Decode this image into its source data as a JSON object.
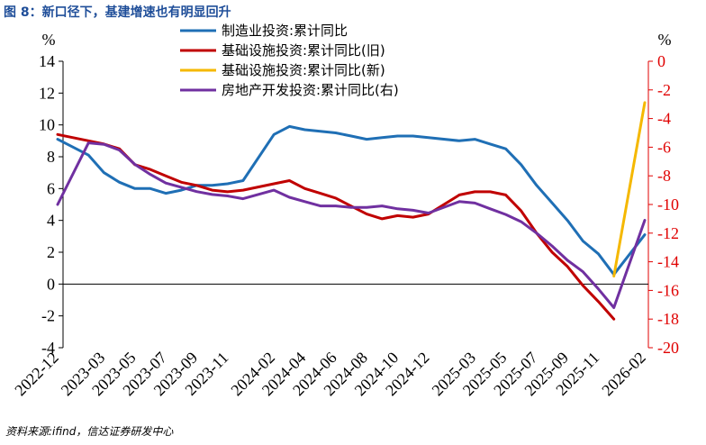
{
  "header": {
    "title": "图 8：新口径下，基建增速也有明显回升"
  },
  "footer": {
    "source": "资料来源:ifind，信达证券研发中心"
  },
  "colors": {
    "manufacturing": "#1f6fb5",
    "infra_old": "#c00000",
    "infra_new": "#f5b800",
    "realestate": "#7030a0",
    "right_axis": "#e00000",
    "title": "#1f4e99"
  },
  "chart_data": {
    "type": "line",
    "title": "新口径下，基建增速也有明显回升",
    "y_left": {
      "unit": "%",
      "min": -4,
      "max": 14,
      "ticks": [
        -4,
        -2,
        0,
        2,
        4,
        6,
        8,
        10,
        12,
        14
      ]
    },
    "y_right": {
      "unit": "%",
      "min": -20,
      "max": 0,
      "ticks": [
        -20,
        -18,
        -16,
        -14,
        -12,
        -10,
        -8,
        -6,
        -4,
        -2,
        0
      ]
    },
    "x_ticks": [
      "2022-12",
      "2023-03",
      "2023-05",
      "2023-07",
      "2023-09",
      "2023-11",
      "2024-02",
      "2024-04",
      "2024-06",
      "2024-08",
      "2024-10",
      "2024-12",
      "2025-03",
      "2025-05",
      "2025-07",
      "2025-09",
      "2025-11",
      "2026-02"
    ],
    "series": [
      {
        "name": "制造业投资:累计同比",
        "axis": "left",
        "color_key": "manufacturing",
        "x": [
          "2022-12",
          "2023-02",
          "2023-03",
          "2023-04",
          "2023-05",
          "2023-06",
          "2023-07",
          "2023-08",
          "2023-09",
          "2023-10",
          "2023-11",
          "2023-12",
          "2024-02",
          "2024-03",
          "2024-04",
          "2024-05",
          "2024-06",
          "2024-07",
          "2024-08",
          "2024-09",
          "2024-10",
          "2024-11",
          "2024-12",
          "2025-02",
          "2025-03",
          "2025-04",
          "2025-05",
          "2025-06",
          "2025-07",
          "2025-08",
          "2025-09",
          "2025-10",
          "2025-11",
          "2025-12",
          "2026-02"
        ],
        "y": [
          9.1,
          8.1,
          7.0,
          6.4,
          6.0,
          6.0,
          5.7,
          5.9,
          6.2,
          6.2,
          6.3,
          6.5,
          9.4,
          9.9,
          9.7,
          9.6,
          9.5,
          9.3,
          9.1,
          9.2,
          9.3,
          9.3,
          9.2,
          9.0,
          9.1,
          8.8,
          8.5,
          7.5,
          6.2,
          5.1,
          4.0,
          2.7,
          1.9,
          0.6,
          3.1
        ]
      },
      {
        "name": "基础设施投资:累计同比(旧)",
        "axis": "left",
        "color_key": "infra_old",
        "x": [
          "2022-12",
          "2023-02",
          "2023-03",
          "2023-04",
          "2023-05",
          "2023-06",
          "2023-07",
          "2023-08",
          "2023-09",
          "2023-10",
          "2023-11",
          "2023-12",
          "2024-02",
          "2024-03",
          "2024-04",
          "2024-05",
          "2024-06",
          "2024-07",
          "2024-08",
          "2024-09",
          "2024-10",
          "2024-11",
          "2024-12",
          "2025-02",
          "2025-03",
          "2025-04",
          "2025-05",
          "2025-06",
          "2025-07",
          "2025-08",
          "2025-09",
          "2025-10",
          "2025-11",
          "2025-12"
        ],
        "y": [
          9.4,
          9.0,
          8.8,
          8.5,
          7.5,
          7.2,
          6.8,
          6.4,
          6.2,
          5.9,
          5.8,
          5.9,
          6.3,
          6.5,
          6.0,
          5.7,
          5.4,
          4.9,
          4.4,
          4.1,
          4.3,
          4.2,
          4.4,
          5.6,
          5.8,
          5.8,
          5.6,
          4.6,
          3.2,
          2.0,
          1.1,
          -0.1,
          -1.1,
          -2.2
        ]
      },
      {
        "name": "基础设施投资:累计同比(新)",
        "axis": "left",
        "color_key": "infra_new",
        "x": [
          "2025-12",
          "2026-02"
        ],
        "y": [
          0.5,
          11.4
        ]
      },
      {
        "name": "房地产开发投资:累计同比(右)",
        "axis": "right",
        "color_key": "realestate",
        "x": [
          "2022-12",
          "2023-02",
          "2023-03",
          "2023-04",
          "2023-05",
          "2023-06",
          "2023-07",
          "2023-08",
          "2023-09",
          "2023-10",
          "2023-11",
          "2023-12",
          "2024-02",
          "2024-03",
          "2024-04",
          "2024-05",
          "2024-06",
          "2024-07",
          "2024-08",
          "2024-09",
          "2024-10",
          "2024-11",
          "2024-12",
          "2025-02",
          "2025-03",
          "2025-04",
          "2025-05",
          "2025-06",
          "2025-07",
          "2025-08",
          "2025-09",
          "2025-10",
          "2025-11",
          "2025-12",
          "2026-02"
        ],
        "y": [
          -10.0,
          -5.7,
          -5.8,
          -6.2,
          -7.2,
          -7.9,
          -8.5,
          -8.8,
          -9.1,
          -9.3,
          -9.4,
          -9.6,
          -9.0,
          -9.5,
          -9.8,
          -10.1,
          -10.1,
          -10.2,
          -10.2,
          -10.1,
          -10.3,
          -10.4,
          -10.6,
          -9.8,
          -9.9,
          -10.3,
          -10.7,
          -11.2,
          -12.0,
          -12.9,
          -13.9,
          -14.7,
          -15.9,
          -17.2,
          -11.1
        ]
      }
    ],
    "legend": {
      "position": "top-center",
      "entries": [
        "制造业投资:累计同比",
        "基础设施投资:累计同比(旧)",
        "基础设施投资:累计同比(新)",
        "房地产开发投资:累计同比(右)"
      ]
    }
  }
}
